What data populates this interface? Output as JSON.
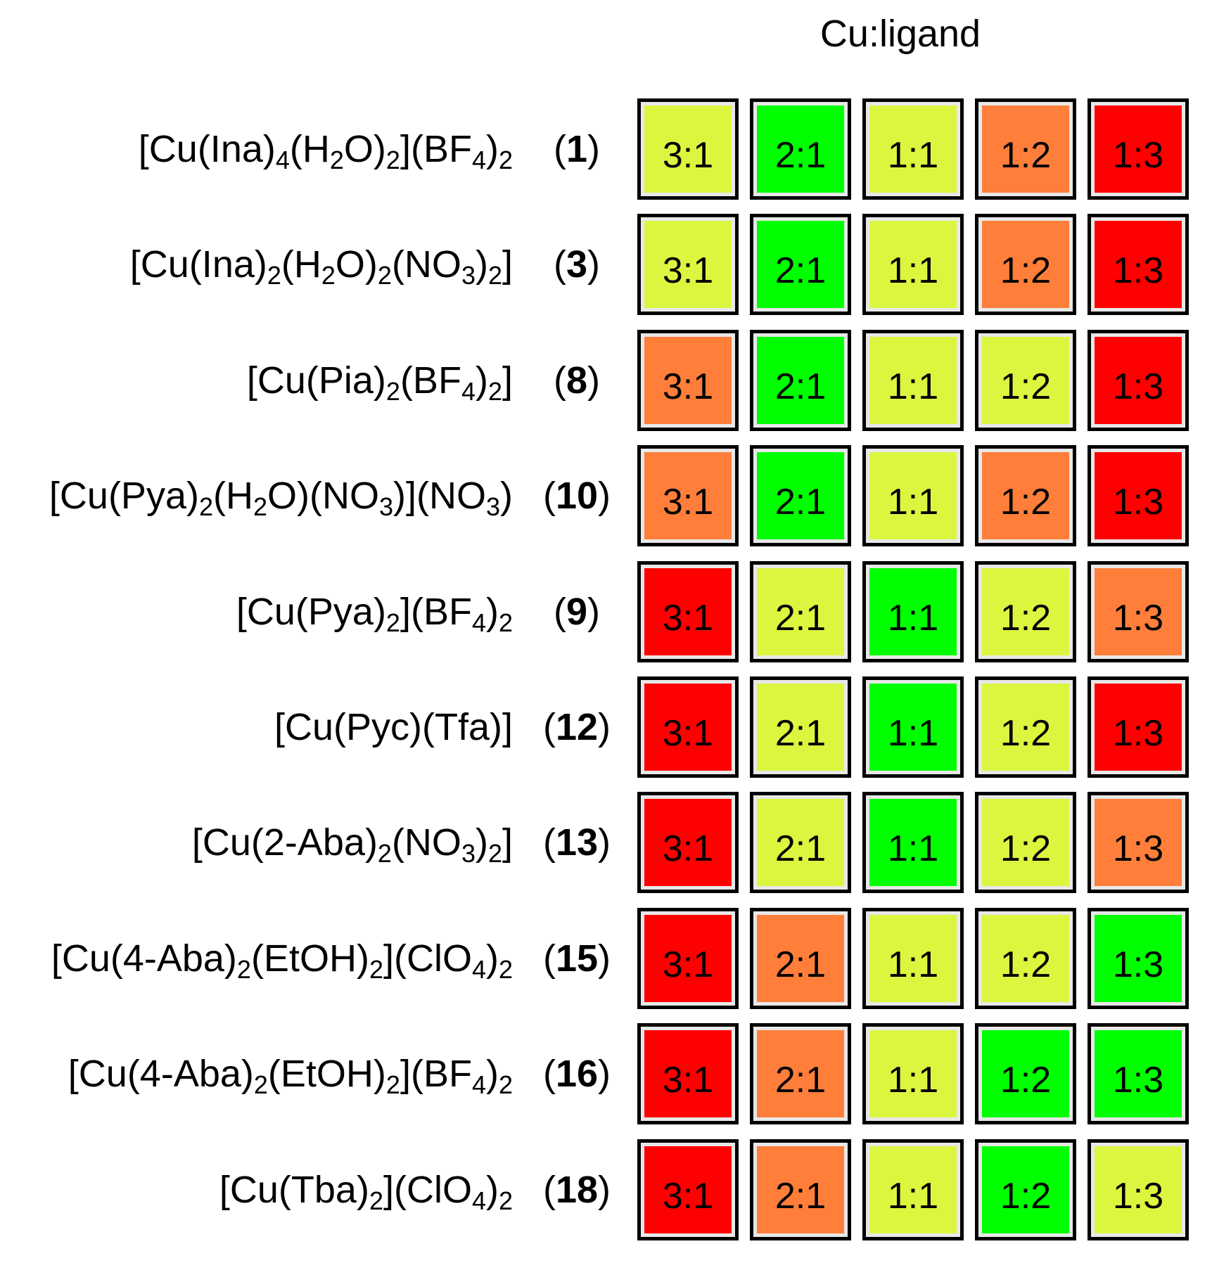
{
  "header": "Cu:ligand",
  "ratios": [
    "3:1",
    "2:1",
    "1:1",
    "1:2",
    "1:3"
  ],
  "colors": {
    "green": "#00ff00",
    "yellow": "#dcf640",
    "orange": "#ff7f3a",
    "red": "#ff0000"
  },
  "rows": [
    {
      "formula": [
        {
          "t": "[Cu(Ina)"
        },
        {
          "s": "4"
        },
        {
          "t": "(H"
        },
        {
          "s": "2"
        },
        {
          "t": "O)"
        },
        {
          "s": "2"
        },
        {
          "t": "](BF"
        },
        {
          "s": "4"
        },
        {
          "t": ")"
        },
        {
          "s": "2"
        }
      ],
      "id": "1",
      "cells": [
        "yellow",
        "green",
        "yellow",
        "orange",
        "red"
      ]
    },
    {
      "formula": [
        {
          "t": "[Cu(Ina)"
        },
        {
          "s": "2"
        },
        {
          "t": "(H"
        },
        {
          "s": "2"
        },
        {
          "t": "O)"
        },
        {
          "s": "2"
        },
        {
          "t": "(NO"
        },
        {
          "s": "3"
        },
        {
          "t": ")"
        },
        {
          "s": "2"
        },
        {
          "t": "]"
        }
      ],
      "id": "3",
      "cells": [
        "yellow",
        "green",
        "yellow",
        "orange",
        "red"
      ]
    },
    {
      "formula": [
        {
          "t": "[Cu(Pia)"
        },
        {
          "s": "2"
        },
        {
          "t": "(BF"
        },
        {
          "s": "4"
        },
        {
          "t": ")"
        },
        {
          "s": "2"
        },
        {
          "t": "]"
        }
      ],
      "id": "8",
      "cells": [
        "orange",
        "green",
        "yellow",
        "yellow",
        "red"
      ]
    },
    {
      "formula": [
        {
          "t": "[Cu(Pya)"
        },
        {
          "s": "2"
        },
        {
          "t": "(H"
        },
        {
          "s": "2"
        },
        {
          "t": "O)(NO"
        },
        {
          "s": "3"
        },
        {
          "t": ")](NO"
        },
        {
          "s": "3"
        },
        {
          "t": ")"
        }
      ],
      "id": "10",
      "cells": [
        "orange",
        "green",
        "yellow",
        "orange",
        "red"
      ]
    },
    {
      "formula": [
        {
          "t": "[Cu(Pya)"
        },
        {
          "s": "2"
        },
        {
          "t": "](BF"
        },
        {
          "s": "4"
        },
        {
          "t": ")"
        },
        {
          "s": "2"
        }
      ],
      "id": "9",
      "cells": [
        "red",
        "yellow",
        "green",
        "yellow",
        "orange"
      ]
    },
    {
      "formula": [
        {
          "t": "[Cu(Pyc)(Tfa)]"
        }
      ],
      "id": "12",
      "cells": [
        "red",
        "yellow",
        "green",
        "yellow",
        "red"
      ]
    },
    {
      "formula": [
        {
          "t": "[Cu(2-Aba)"
        },
        {
          "s": "2"
        },
        {
          "t": "(NO"
        },
        {
          "s": "3"
        },
        {
          "t": ")"
        },
        {
          "s": "2"
        },
        {
          "t": "]"
        }
      ],
      "id": "13",
      "cells": [
        "red",
        "yellow",
        "green",
        "yellow",
        "orange"
      ]
    },
    {
      "formula": [
        {
          "t": "[Cu(4-Aba)"
        },
        {
          "s": "2"
        },
        {
          "t": "(EtOH)"
        },
        {
          "s": "2"
        },
        {
          "t": "](ClO"
        },
        {
          "s": "4"
        },
        {
          "t": ")"
        },
        {
          "s": "2"
        }
      ],
      "id": "15",
      "cells": [
        "red",
        "orange",
        "yellow",
        "yellow",
        "green"
      ]
    },
    {
      "formula": [
        {
          "t": "[Cu(4-Aba)"
        },
        {
          "s": "2"
        },
        {
          "t": "(EtOH)"
        },
        {
          "s": "2"
        },
        {
          "t": "](BF"
        },
        {
          "s": "4"
        },
        {
          "t": ")"
        },
        {
          "s": "2"
        }
      ],
      "id": "16",
      "cells": [
        "red",
        "orange",
        "yellow",
        "green",
        "green"
      ]
    },
    {
      "formula": [
        {
          "t": "[Cu(Tba)"
        },
        {
          "s": "2"
        },
        {
          "t": "](ClO"
        },
        {
          "s": "4"
        },
        {
          "t": ")"
        },
        {
          "s": "2"
        }
      ],
      "id": "18",
      "cells": [
        "red",
        "orange",
        "yellow",
        "green",
        "yellow"
      ]
    }
  ]
}
